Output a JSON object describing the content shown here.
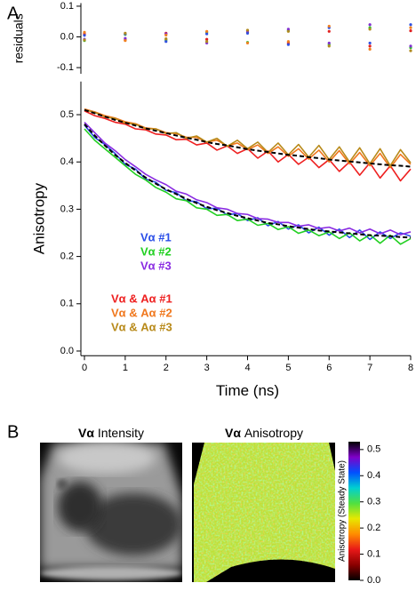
{
  "panels": {
    "labels": [
      "A",
      "B"
    ],
    "images": [
      {
        "subject": "Vα",
        "measure": "Intensity"
      },
      {
        "subject": "Vα",
        "measure": "Anisotropy"
      }
    ]
  },
  "chart_data": [
    {
      "type": "scatter",
      "ylabel": "residuals",
      "x": [
        0,
        1,
        2,
        3,
        4,
        5,
        6,
        7,
        8
      ],
      "xlim": [
        0,
        8
      ],
      "ylim": [
        -0.12,
        0.11
      ],
      "yticks": [
        -0.1,
        {
          "value": 0,
          "label": "0.0"
        },
        0.1
      ],
      "series": [
        {
          "color": "#e02020",
          "values": [
            0.01,
            -0.01,
            0.012,
            -0.008,
            0.015,
            -0.02,
            0.018,
            -0.03,
            0.02
          ]
        },
        {
          "color": "#30c030",
          "values": [
            -0.012,
            0.008,
            -0.01,
            0.015,
            -0.018,
            0.02,
            -0.025,
            0.03,
            -0.035
          ]
        },
        {
          "color": "#3050e0",
          "values": [
            0.005,
            0.01,
            -0.015,
            0.01,
            0.012,
            -0.025,
            0.03,
            -0.02,
            0.04
          ]
        },
        {
          "color": "#8030d0",
          "values": [
            -0.008,
            -0.005,
            0.01,
            -0.02,
            0.02,
            0.025,
            -0.02,
            0.04,
            -0.03
          ]
        },
        {
          "color": "#f08020",
          "values": [
            0.015,
            -0.012,
            0.006,
            0.018,
            -0.02,
            -0.015,
            0.035,
            -0.04,
            0.03
          ]
        },
        {
          "color": "#b08a20",
          "values": [
            -0.01,
            0.012,
            -0.006,
            -0.015,
            0.022,
            0.018,
            -0.03,
            0.025,
            -0.045
          ]
        }
      ]
    },
    {
      "type": "line",
      "xlabel": "Time (ns)",
      "ylabel": "Anisotropy",
      "legend": "lower left",
      "x": [
        0,
        0.25,
        0.5,
        0.75,
        1,
        1.25,
        1.5,
        1.75,
        2,
        2.25,
        2.5,
        2.75,
        3,
        3.25,
        3.5,
        3.75,
        4,
        4.25,
        4.5,
        4.75,
        5,
        5.25,
        5.5,
        5.75,
        6,
        6.25,
        6.5,
        6.75,
        7,
        7.25,
        7.5,
        7.75,
        8
      ],
      "xlim": [
        0,
        8
      ],
      "xticks": [
        0,
        1,
        2,
        3,
        4,
        5,
        6,
        7,
        8
      ],
      "ylim": [
        -0.01,
        0.57
      ],
      "yticks": [
        {
          "value": 0,
          "label": "0.0"
        },
        0.1,
        0.2,
        0.3,
        0.4,
        0.5
      ],
      "series": [
        {
          "name": "Vα #1",
          "color": "#2a4ee8",
          "values": [
            0.478,
            0.452,
            0.437,
            0.418,
            0.395,
            0.385,
            0.364,
            0.357,
            0.34,
            0.335,
            0.318,
            0.316,
            0.301,
            0.302,
            0.288,
            0.291,
            0.276,
            0.282,
            0.265,
            0.274,
            0.258,
            0.267,
            0.25,
            0.262,
            0.245,
            0.258,
            0.24,
            0.256,
            0.236,
            0.252,
            0.238,
            0.25,
            0.243
          ]
        },
        {
          "name": "Vα #2",
          "color": "#22d022",
          "values": [
            0.47,
            0.446,
            0.428,
            0.41,
            0.392,
            0.374,
            0.362,
            0.346,
            0.336,
            0.322,
            0.318,
            0.303,
            0.3,
            0.287,
            0.289,
            0.276,
            0.279,
            0.266,
            0.27,
            0.257,
            0.263,
            0.249,
            0.256,
            0.244,
            0.252,
            0.238,
            0.25,
            0.233,
            0.246,
            0.228,
            0.245,
            0.226,
            0.238
          ]
        },
        {
          "name": "Vα #3",
          "color": "#8a2be2",
          "values": [
            0.484,
            0.462,
            0.44,
            0.424,
            0.405,
            0.39,
            0.374,
            0.362,
            0.352,
            0.338,
            0.332,
            0.32,
            0.314,
            0.303,
            0.3,
            0.291,
            0.289,
            0.28,
            0.279,
            0.272,
            0.272,
            0.264,
            0.267,
            0.259,
            0.262,
            0.254,
            0.26,
            0.25,
            0.258,
            0.248,
            0.256,
            0.246,
            0.252
          ]
        },
        {
          "name": "Vα & Aα #1",
          "color": "#ee2020",
          "values": [
            0.508,
            0.498,
            0.492,
            0.484,
            0.48,
            0.47,
            0.468,
            0.459,
            0.457,
            0.447,
            0.448,
            0.436,
            0.44,
            0.425,
            0.434,
            0.418,
            0.428,
            0.408,
            0.423,
            0.4,
            0.416,
            0.395,
            0.41,
            0.388,
            0.405,
            0.38,
            0.4,
            0.372,
            0.398,
            0.366,
            0.392,
            0.36,
            0.385
          ]
        },
        {
          "name": "Vα & Aα #2",
          "color": "#f0781e",
          "values": [
            0.512,
            0.506,
            0.498,
            0.493,
            0.485,
            0.481,
            0.472,
            0.47,
            0.462,
            0.46,
            0.452,
            0.452,
            0.442,
            0.446,
            0.434,
            0.44,
            0.426,
            0.436,
            0.418,
            0.432,
            0.412,
            0.428,
            0.406,
            0.425,
            0.4,
            0.424,
            0.396,
            0.42,
            0.392,
            0.418,
            0.388,
            0.416,
            0.395
          ]
        },
        {
          "name": "Vα & Aα #3",
          "color": "#b88a1a",
          "values": [
            0.51,
            0.505,
            0.495,
            0.492,
            0.482,
            0.48,
            0.47,
            0.47,
            0.46,
            0.462,
            0.45,
            0.455,
            0.442,
            0.45,
            0.433,
            0.446,
            0.428,
            0.442,
            0.42,
            0.44,
            0.415,
            0.437,
            0.41,
            0.435,
            0.405,
            0.432,
            0.4,
            0.43,
            0.396,
            0.428,
            0.392,
            0.426,
            0.398
          ]
        }
      ],
      "fits": [
        {
          "color": "#000000",
          "dashed": true,
          "values": [
            0.48,
            0.456,
            0.435,
            0.415,
            0.398,
            0.382,
            0.367,
            0.354,
            0.342,
            0.332,
            0.322,
            0.313,
            0.305,
            0.298,
            0.292,
            0.286,
            0.281,
            0.276,
            0.271,
            0.268,
            0.264,
            0.261,
            0.258,
            0.255,
            0.253,
            0.251,
            0.249,
            0.247,
            0.245,
            0.244,
            0.243,
            0.241,
            0.24
          ]
        },
        {
          "color": "#000000",
          "dashed": true,
          "values": [
            0.51,
            0.503,
            0.496,
            0.489,
            0.483,
            0.477,
            0.471,
            0.466,
            0.461,
            0.456,
            0.451,
            0.447,
            0.442,
            0.438,
            0.435,
            0.431,
            0.427,
            0.424,
            0.421,
            0.418,
            0.415,
            0.413,
            0.41,
            0.408,
            0.405,
            0.403,
            0.401,
            0.399,
            0.397,
            0.395,
            0.393,
            0.392,
            0.39
          ]
        }
      ]
    },
    {
      "type": "colorbar",
      "label": "Anisotropy (Steady State)",
      "colors": [
        "#000000",
        "#8a0000",
        "#e81818",
        "#ff8c00",
        "#e8e800",
        "#50e040",
        "#00d0d0",
        "#0050ff",
        "#8000c8",
        "#000000"
      ],
      "ylim": [
        0,
        0.53
      ],
      "yticks": [
        {
          "value": 0,
          "label": "0.0"
        },
        0.1,
        0.2,
        0.3,
        0.4,
        0.5
      ]
    }
  ]
}
